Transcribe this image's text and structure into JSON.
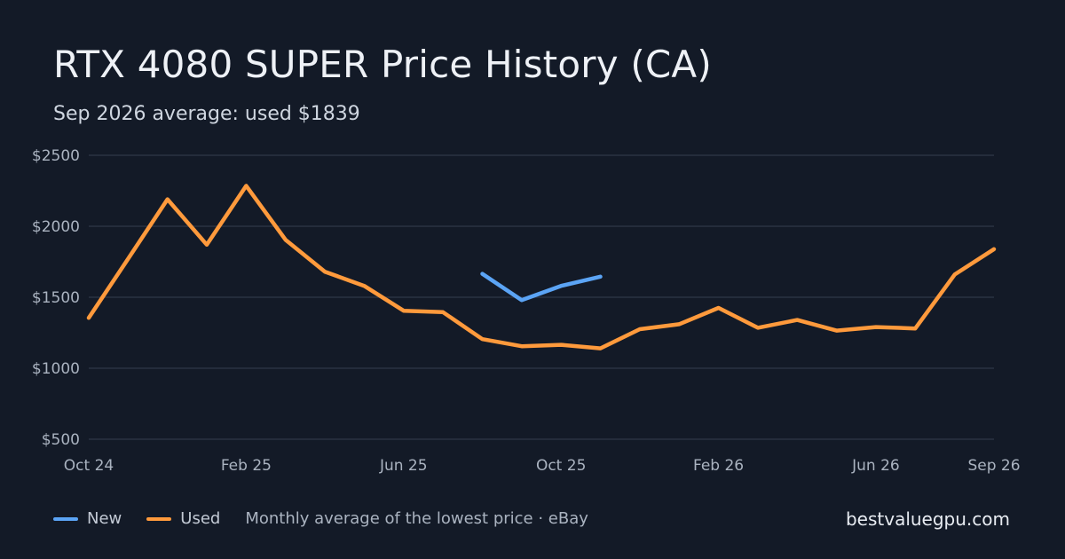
{
  "header": {
    "title": "RTX 4080 SUPER Price History (CA)",
    "subtitle": "Sep 2026 average: used $1839"
  },
  "legend": {
    "new_label": "New",
    "used_label": "Used",
    "note": "Monthly average of the lowest price · eBay"
  },
  "brand": "bestvaluegpu.com",
  "colors": {
    "background": "#131a27",
    "new": "#5ba4f5",
    "used": "#ff9a3c",
    "grid": "#2a3242"
  },
  "chart_data": {
    "type": "line",
    "x": [
      "Oct 24",
      "Nov 24",
      "Dec 24",
      "Jan 25",
      "Feb 25",
      "Mar 25",
      "Apr 25",
      "May 25",
      "Jun 25",
      "Jul 25",
      "Aug 25",
      "Sep 25",
      "Oct 25",
      "Nov 25",
      "Dec 25",
      "Jan 26",
      "Feb 26",
      "Mar 26",
      "Apr 26",
      "May 26",
      "Jun 26",
      "Jul 26",
      "Aug 26",
      "Sep 26"
    ],
    "x_tick_labels": [
      "Oct 24",
      "Feb 25",
      "Jun 25",
      "Oct 25",
      "Feb 26",
      "Jun 26",
      "Sep 26"
    ],
    "y_tick_labels": [
      "$2500",
      "$2000",
      "$1500",
      "$1000",
      "$500"
    ],
    "y_ticks": [
      2500,
      2000,
      1500,
      1000,
      500
    ],
    "ylim": [
      500,
      2500
    ],
    "grid": true,
    "series": [
      {
        "name": "New",
        "values": [
          null,
          null,
          null,
          null,
          null,
          null,
          null,
          null,
          null,
          null,
          1665,
          1480,
          1580,
          1645,
          null,
          null,
          null,
          null,
          null,
          null,
          null,
          null,
          null,
          null
        ]
      },
      {
        "name": "Used",
        "values": [
          1355,
          1770,
          2190,
          1870,
          2285,
          1905,
          1680,
          1580,
          1405,
          1395,
          1205,
          1155,
          1165,
          1140,
          1275,
          1310,
          1425,
          1285,
          1340,
          1265,
          1290,
          1280,
          1660,
          1839
        ]
      }
    ]
  }
}
